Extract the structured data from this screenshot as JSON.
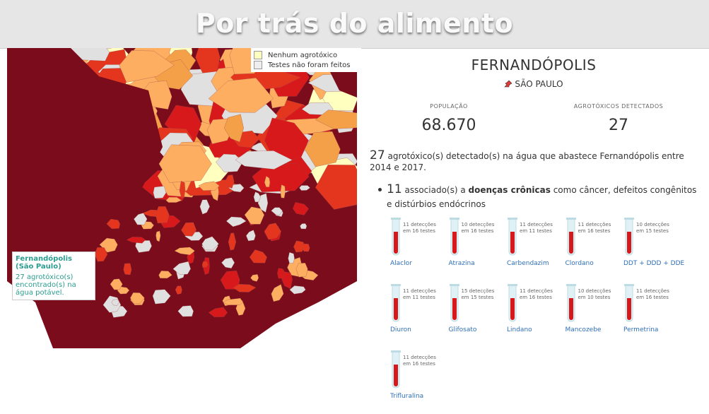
{
  "header": {
    "title": "Por trás do alimento"
  },
  "map": {
    "legend": [
      "Nenhum agrotóxico",
      "Testes não foram feitos"
    ],
    "tooltip": {
      "title": "Fernandópolis (São Paulo)",
      "text": "27 agrotóxico(s) encontrado(s) na água potável."
    }
  },
  "city": {
    "name": "FERNANDÓPOLIS",
    "state": "SÃO PAULO",
    "stats": [
      {
        "label": "POPULAÇÃO",
        "value": "68.670"
      },
      {
        "label": "AGROTÓXICOS DETECTADOS",
        "value": "27"
      }
    ],
    "summary": {
      "count": "27",
      "text": "agrotóxico(s) detectado(s) na água que abastece Fernandópolis entre 2014 e 2017."
    },
    "chronic": {
      "count": "11",
      "before": "associado(s) a",
      "bold": "doenças crônicas",
      "after": "como câncer, defeitos congênitos e distúrbios endócrinos"
    },
    "pesticides": [
      {
        "name": "Alaclor",
        "line1": "11 detecções",
        "line2": "em 16 testes"
      },
      {
        "name": "Atrazina",
        "line1": "10 detecções",
        "line2": "em 16 testes"
      },
      {
        "name": "Carbendazim",
        "line1": "11 detecções",
        "line2": "em 11 testes"
      },
      {
        "name": "Clordano",
        "line1": "11 detecções",
        "line2": "em 16 testes"
      },
      {
        "name": "DDT + DDD + DDE",
        "line1": "10 detecções",
        "line2": "em 15 testes"
      },
      {
        "name": "Diuron",
        "line1": "11 detecções",
        "line2": "em 11 testes"
      },
      {
        "name": "Glifosato",
        "line1": "15 detecções",
        "line2": "em 15 testes"
      },
      {
        "name": "Lindano",
        "line1": "11 detecções",
        "line2": "em 16 testes"
      },
      {
        "name": "Mancozebe",
        "line1": "10 detecções",
        "line2": "em 10 testes"
      },
      {
        "name": "Permetrina",
        "line1": "11 detecções",
        "line2": "em 16 testes"
      },
      {
        "name": "Trifluralina",
        "line1": "11 detecções",
        "line2": "em 16 testes"
      }
    ]
  }
}
